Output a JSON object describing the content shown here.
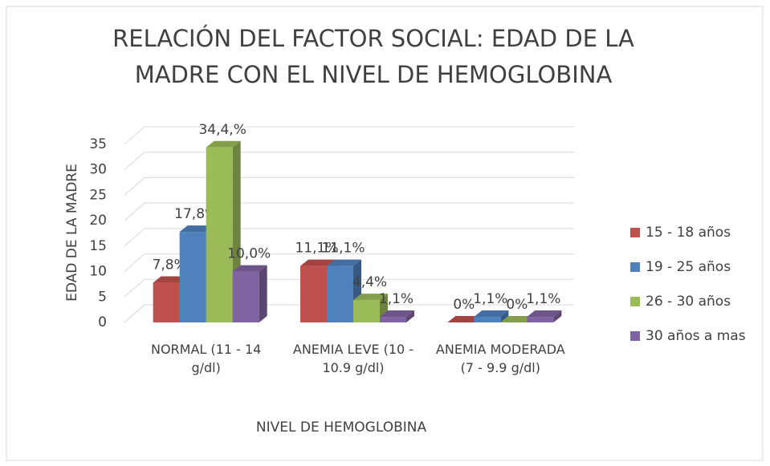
{
  "chart_data": {
    "type": "bar3d",
    "title": [
      "RELACIÓN DEL FACTOR SOCIAL: EDAD DE LA",
      "MADRE CON EL NIVEL DE HEMOGLOBINA"
    ],
    "x_label": "NIVEL DE HEMOGLOBINA",
    "y_label": "EDAD DE LA MADRE",
    "categories": [
      "NORMAL (11 - 14 g/dl)",
      "ANEMIA LEVE (10 - 10.9 g/dl)",
      "ANEMIA MODERADA (7 - 9.9 g/dl)"
    ],
    "series": [
      {
        "name": "15 - 18 años",
        "color": "#c0504d",
        "values": [
          7.8,
          11.1,
          0
        ],
        "value_labels": [
          "7,8%",
          "11,1%",
          "0%"
        ]
      },
      {
        "name": "19 - 25 años",
        "color": "#4f81bd",
        "values": [
          17.8,
          11.1,
          1.1
        ],
        "value_labels": [
          "17,8%",
          "11,1%",
          "1,1%"
        ]
      },
      {
        "name": "26 - 30 años",
        "color": "#9bbb59",
        "values": [
          34.4,
          4.4,
          0
        ],
        "value_labels": [
          "34,4,%",
          "4,4%",
          "0%"
        ]
      },
      {
        "name": "30 años a mas",
        "color": "#8064a2",
        "values": [
          10.0,
          1.1,
          1.1
        ],
        "value_labels": [
          "10,0%",
          "1,1%",
          "1,1%"
        ]
      }
    ],
    "ylim": [
      0,
      35
    ],
    "yticks": [
      0,
      5,
      10,
      15,
      20,
      25,
      30,
      35
    ],
    "grid": true,
    "legend": "right"
  }
}
